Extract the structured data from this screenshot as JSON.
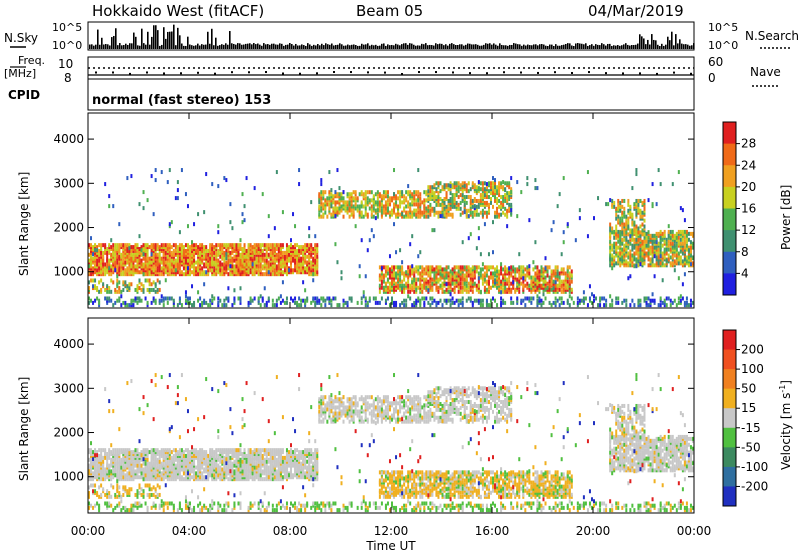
{
  "header": {
    "title": "Hokkaido West (fitACF)",
    "beam": "Beam 05",
    "date": "04/Mar/2019"
  },
  "strip": {
    "nsky_label": "N.Sky",
    "nsearch_label": "N.Search",
    "noise_ticks": [
      "10^5",
      "10^0"
    ],
    "freq_label_1": "Freq.",
    "freq_label_2": "[MHz]",
    "freq_ticks": [
      "10",
      "8"
    ],
    "nave_label": "Nave",
    "nave_ticks": [
      "60",
      "0"
    ],
    "cpid_label": "CPID",
    "cpid_text": "normal (fast stereo) 153"
  },
  "chart_data": [
    {
      "type": "heatmap",
      "quantity": "Power",
      "ylabel": "Slant Range [km]",
      "xlabel": "Time UT",
      "ylim": [
        180,
        4590
      ],
      "yticks": [
        "1000",
        "2000",
        "3000",
        "4000"
      ],
      "xticks": [
        "00:00",
        "04:00",
        "08:00",
        "12:00",
        "16:00",
        "20:00",
        "00:00"
      ],
      "colorbar_label": "Power [dB]",
      "colorbar_ticks": [
        "4",
        "8",
        "12",
        "16",
        "20",
        "24",
        "28"
      ],
      "colorbar_colors": [
        "#2020e0",
        "#2f5fbf",
        "#3f9070",
        "#4fb050",
        "#c8d020",
        "#f0a020",
        "#f06a18",
        "#e02020"
      ]
    },
    {
      "type": "heatmap",
      "quantity": "Velocity",
      "ylabel": "Slant Range [km]",
      "xlabel": "Time UT",
      "ylim": [
        180,
        4590
      ],
      "yticks": [
        "1000",
        "2000",
        "3000",
        "4000"
      ],
      "xticks": [
        "00:00",
        "04:00",
        "08:00",
        "12:00",
        "16:00",
        "20:00",
        "00:00"
      ],
      "colorbar_label": "Velocity [m s",
      "colorbar_label_sup": "-1",
      "colorbar_label_end": "]",
      "colorbar_ticks": [
        "200",
        "100",
        "50",
        "15",
        "-15",
        "-50",
        "-100",
        "-200"
      ],
      "colorbar_colors": [
        "#2030c0",
        "#2f6fa0",
        "#3c8a60",
        "#50c040",
        "#c8c8c8",
        "#f0b020",
        "#f08020",
        "#f05020",
        "#e02020"
      ]
    }
  ]
}
